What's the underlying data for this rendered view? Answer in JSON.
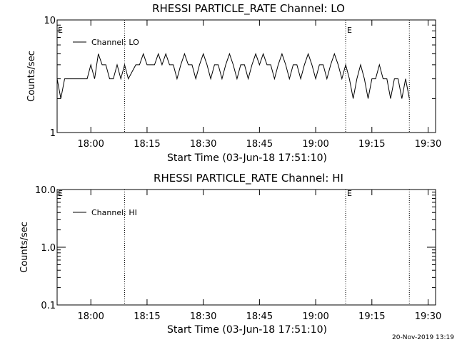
{
  "footer": {
    "timestamp": "20-Nov-2019 13:19"
  },
  "chart_data": [
    {
      "type": "line",
      "title": "RHESSI PARTICLE_RATE Channel: LO",
      "xlabel": "Start Time (03-Jun-18 17:51:10)",
      "ylabel": "Counts/sec",
      "yscale": "log",
      "ylim": [
        1,
        10
      ],
      "ytick_labels": [
        {
          "value": 1,
          "label": "1"
        },
        {
          "value": 10,
          "label": "10"
        }
      ],
      "xlim": [
        "17:51",
        "19:32"
      ],
      "xtick_labels": [
        "18:00",
        "18:15",
        "18:30",
        "18:45",
        "19:00",
        "19:15",
        "19:30"
      ],
      "vlines": [
        {
          "x": "18:09",
          "label": ""
        },
        {
          "x": "19:08",
          "label": "E"
        },
        {
          "x": "19:25",
          "label": ""
        }
      ],
      "left_marker": "E",
      "legend": {
        "position": "top-left"
      },
      "series": [
        {
          "name": "Channel: LO",
          "x": [
            "17:51",
            "17:52",
            "17:53",
            "17:56",
            "17:59",
            "18:00",
            "18:01",
            "18:02",
            "18:03",
            "18:04",
            "18:05",
            "18:06",
            "18:07",
            "18:08",
            "18:09",
            "18:10",
            "18:12",
            "18:13",
            "18:14",
            "18:15",
            "18:16",
            "18:17",
            "18:18",
            "18:19",
            "18:20",
            "18:21",
            "18:22",
            "18:23",
            "18:24",
            "18:25",
            "18:26",
            "18:27",
            "18:28",
            "18:29",
            "18:30",
            "18:31",
            "18:32",
            "18:33",
            "18:34",
            "18:35",
            "18:36",
            "18:37",
            "18:38",
            "18:39",
            "18:40",
            "18:41",
            "18:42",
            "18:43",
            "18:44",
            "18:45",
            "18:46",
            "18:47",
            "18:48",
            "18:49",
            "18:50",
            "18:51",
            "18:52",
            "18:53",
            "18:54",
            "18:55",
            "18:56",
            "18:57",
            "18:58",
            "18:59",
            "19:00",
            "19:01",
            "19:02",
            "19:03",
            "19:04",
            "19:05",
            "19:06",
            "19:07",
            "19:08",
            "19:09",
            "19:10",
            "19:11",
            "19:12",
            "19:13",
            "19:14",
            "19:15",
            "19:16",
            "19:17",
            "19:18",
            "19:19",
            "19:20",
            "19:21",
            "19:22",
            "19:23",
            "19:24",
            "19:25"
          ],
          "y": [
            3,
            2,
            3,
            3,
            3,
            4,
            3,
            5,
            4,
            4,
            3,
            3,
            4,
            3,
            4,
            3,
            4,
            4,
            5,
            4,
            4,
            4,
            5,
            4,
            5,
            4,
            4,
            3,
            4,
            5,
            4,
            4,
            3,
            4,
            5,
            4,
            3,
            4,
            4,
            3,
            4,
            5,
            4,
            3,
            4,
            4,
            3,
            4,
            5,
            4,
            5,
            4,
            4,
            3,
            4,
            5,
            4,
            3,
            4,
            4,
            3,
            4,
            5,
            4,
            3,
            4,
            4,
            3,
            4,
            5,
            4,
            3,
            4,
            3,
            2,
            3,
            4,
            3,
            2,
            3,
            3,
            4,
            3,
            3,
            2,
            3,
            3,
            2,
            3,
            2
          ]
        }
      ]
    },
    {
      "type": "line",
      "title": "RHESSI PARTICLE_RATE Channel: HI",
      "xlabel": "Start Time (03-Jun-18 17:51:10)",
      "ylabel": "Counts/sec",
      "yscale": "log",
      "ylim": [
        0.1,
        10
      ],
      "ytick_labels": [
        {
          "value": 0.1,
          "label": "0.1"
        },
        {
          "value": 1,
          "label": "1.0"
        },
        {
          "value": 10,
          "label": "10.0"
        }
      ],
      "xlim": [
        "17:51",
        "19:32"
      ],
      "xtick_labels": [
        "18:00",
        "18:15",
        "18:30",
        "18:45",
        "19:00",
        "19:15",
        "19:30"
      ],
      "vlines": [
        {
          "x": "18:09",
          "label": ""
        },
        {
          "x": "19:08",
          "label": "E"
        },
        {
          "x": "19:25",
          "label": ""
        }
      ],
      "left_marker": "E",
      "legend": {
        "position": "top-left"
      },
      "series": [
        {
          "name": "Channel: HI",
          "x": [],
          "y": []
        }
      ]
    }
  ]
}
